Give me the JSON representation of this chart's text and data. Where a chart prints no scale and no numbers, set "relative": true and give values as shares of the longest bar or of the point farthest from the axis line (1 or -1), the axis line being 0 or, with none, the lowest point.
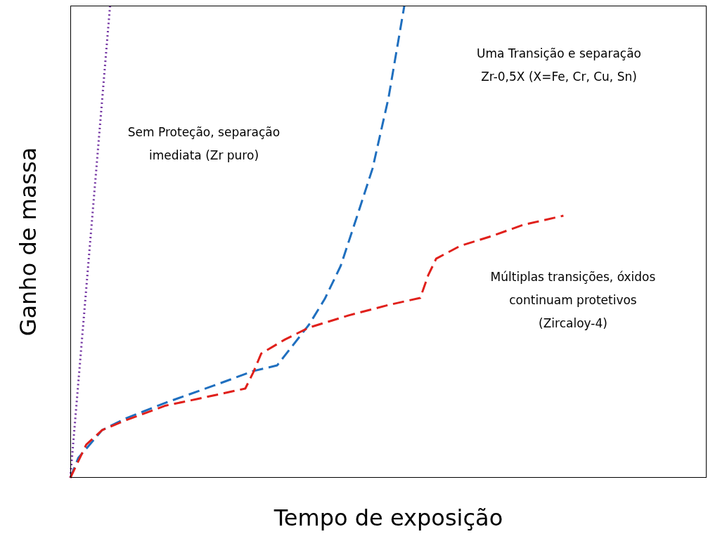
{
  "chart_data": {
    "type": "line",
    "relative": true,
    "xlabel": "Tempo de exposição",
    "ylabel": "Ganho de massa",
    "categories": [
      null,
      null,
      null,
      null,
      null,
      null,
      null,
      null,
      null,
      null,
      null,
      null,
      null,
      null,
      null,
      null,
      null,
      null,
      null,
      null,
      null,
      null,
      null,
      null,
      null,
      null,
      null,
      null,
      null,
      null,
      null,
      null,
      null,
      null,
      null,
      null,
      null,
      null,
      null,
      null,
      null,
      null,
      null,
      null,
      null,
      null,
      null,
      null,
      null,
      null,
      null,
      null,
      null,
      null,
      null,
      null,
      null,
      null,
      null,
      null,
      null,
      null,
      null,
      null,
      null,
      null,
      null,
      null,
      null,
      null,
      null,
      null,
      null,
      null,
      null,
      null,
      null,
      null,
      null,
      null,
      null
    ],
    "series": [
      {
        "color": "#7030a0",
        "line_style": "dotted",
        "values": [
          0,
          0.2,
          0.4,
          0.6,
          0.8,
          1.0,
          null,
          null,
          null,
          null,
          null,
          null,
          null,
          null,
          null,
          null,
          null,
          null,
          null,
          null,
          null,
          null,
          null,
          null,
          null,
          null,
          null,
          null,
          null,
          null,
          null,
          null,
          null,
          null,
          null,
          null,
          null,
          null,
          null,
          null,
          null,
          null,
          null,
          null,
          null,
          null,
          null,
          null,
          null,
          null,
          null,
          null,
          null,
          null,
          null,
          null,
          null,
          null,
          null,
          null,
          null,
          null,
          null,
          null,
          null,
          null,
          null,
          null,
          null,
          null,
          null,
          null,
          null,
          null,
          null,
          null,
          null,
          null,
          null,
          null,
          null
        ]
      },
      {
        "color": "#1f6fbf",
        "line_style": "dashed",
        "values": [
          0,
          0.042,
          null,
          null,
          0.101,
          null,
          null,
          0.126,
          null,
          null,
          null,
          null,
          0.159,
          null,
          null,
          null,
          null,
          null,
          0.195,
          null,
          null,
          null,
          null,
          0.226,
          null,
          null,
          0.238,
          null,
          null,
          null,
          0.324,
          null,
          0.379,
          null,
          0.449,
          null,
          0.551,
          null,
          0.655,
          null,
          0.804,
          null,
          1.0,
          null,
          null,
          null,
          null,
          null,
          null,
          null,
          null,
          null,
          null,
          null,
          null,
          null,
          null,
          null,
          null,
          null,
          null,
          null,
          null,
          null,
          null,
          null,
          null,
          null,
          null,
          null,
          null,
          null,
          null,
          null,
          null,
          null,
          null,
          null,
          null,
          null,
          null
        ]
      },
      {
        "color": "#e0201b",
        "line_style": "dashed",
        "values": [
          0,
          null,
          0.07,
          null,
          0.101,
          null,
          null,
          0.122,
          null,
          null,
          null,
          null,
          0.153,
          null,
          null,
          null,
          0.167,
          null,
          null,
          null,
          null,
          null,
          0.189,
          0.223,
          0.263,
          null,
          null,
          0.293,
          null,
          null,
          0.318,
          null,
          null,
          null,
          null,
          0.344,
          null,
          null,
          null,
          null,
          0.366,
          null,
          null,
          null,
          0.381,
          0.429,
          0.464,
          null,
          null,
          0.491,
          null,
          null,
          null,
          0.512,
          null,
          null,
          null,
          0.536,
          null,
          null,
          null,
          null,
          0.555,
          null,
          null,
          null,
          null,
          null,
          null,
          null,
          null,
          null,
          null,
          null,
          null,
          null,
          null,
          null,
          null,
          null,
          null
        ]
      }
    ],
    "annotations": [
      "Sem Proteção, separação imediata (Zr puro)",
      "Uma Transição e separação Zr-0,5X (X=Fe, Cr, Cu, Sn)",
      "Múltiplas transições, óxidos continuam protetivos (Zircaloy-4)"
    ]
  }
}
